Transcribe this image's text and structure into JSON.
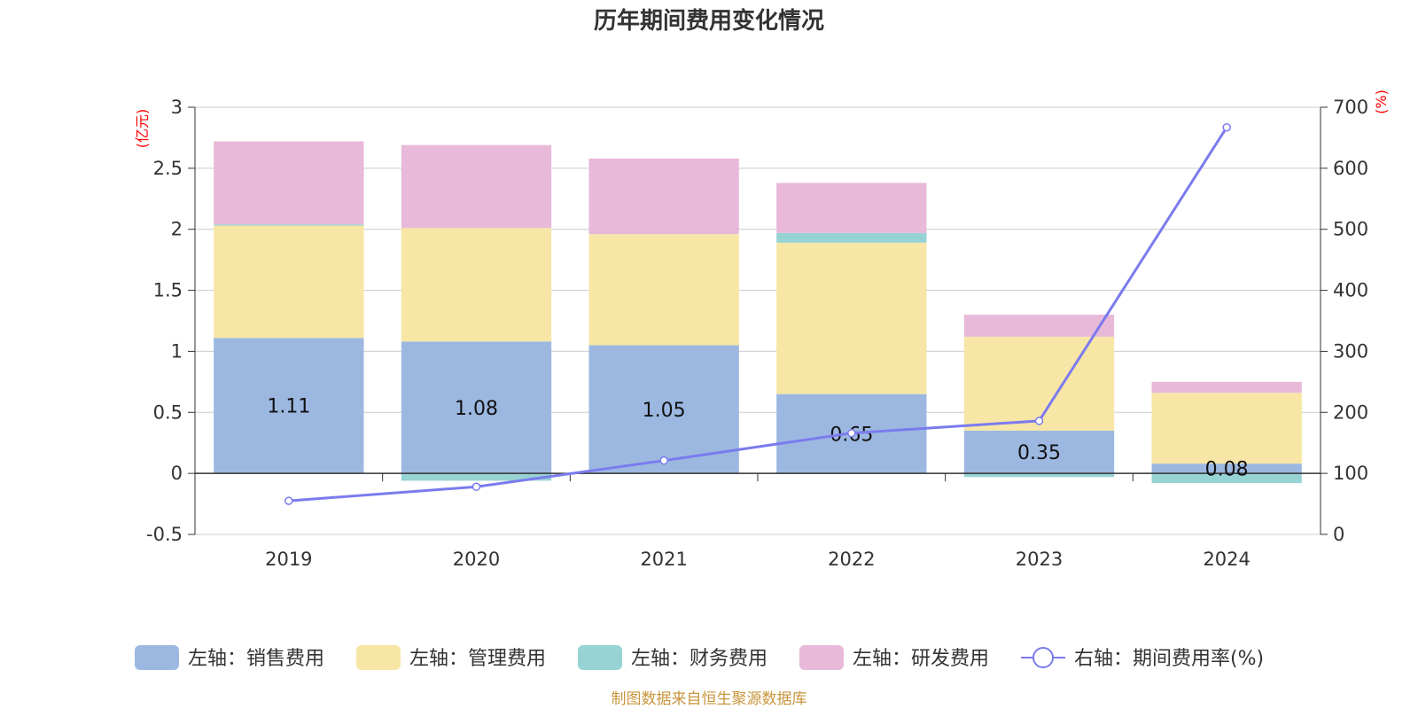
{
  "chart_data": {
    "type": "bar",
    "stacked": true,
    "title": "历年期间费用变化情况",
    "categories": [
      "2019",
      "2020",
      "2021",
      "2022",
      "2023",
      "2024"
    ],
    "left_axis": {
      "unit": "(亿元)",
      "ylim": [
        -0.5,
        3
      ],
      "ticks": [
        "3",
        "2.5",
        "2",
        "1.5",
        "1",
        "0.5",
        "0",
        "-0.5"
      ],
      "tick_values": [
        3,
        2.5,
        2,
        1.5,
        1,
        0.5,
        0,
        -0.5
      ]
    },
    "right_axis": {
      "unit": "(%)",
      "ylim": [
        0,
        700
      ],
      "ticks": [
        "700",
        "600",
        "500",
        "400",
        "300",
        "200",
        "100",
        "0"
      ],
      "tick_values": [
        700,
        600,
        500,
        400,
        300,
        200,
        100,
        0
      ]
    },
    "series": [
      {
        "name": "左轴：销售费用",
        "color": "#9cb8e1",
        "values": [
          1.11,
          1.08,
          1.05,
          0.65,
          0.35,
          0.08
        ]
      },
      {
        "name": "左轴：管理费用",
        "color": "#f7e6a6",
        "values": [
          0.92,
          0.93,
          0.91,
          1.24,
          0.77,
          0.58
        ]
      },
      {
        "name": "左轴：财务费用",
        "color": "#97d3d4",
        "values": [
          0.01,
          -0.06,
          0.0,
          0.08,
          -0.03,
          -0.08
        ]
      },
      {
        "name": "左轴：研发费用",
        "color": "#e8b9d9",
        "values": [
          0.68,
          0.68,
          0.62,
          0.41,
          0.18,
          0.09
        ]
      }
    ],
    "line_series": {
      "name": "右轴：期间费用率(%)",
      "color": "#7b7bee",
      "values": [
        55,
        78,
        121,
        166,
        186,
        667
      ]
    },
    "data_labels": [
      "1.11",
      "1.08",
      "1.05",
      "0.65",
      "0.35",
      "0.08"
    ],
    "grid": true,
    "legend_position": "bottom"
  },
  "footer": {
    "source": "制图数据来自恒生聚源数据库"
  }
}
